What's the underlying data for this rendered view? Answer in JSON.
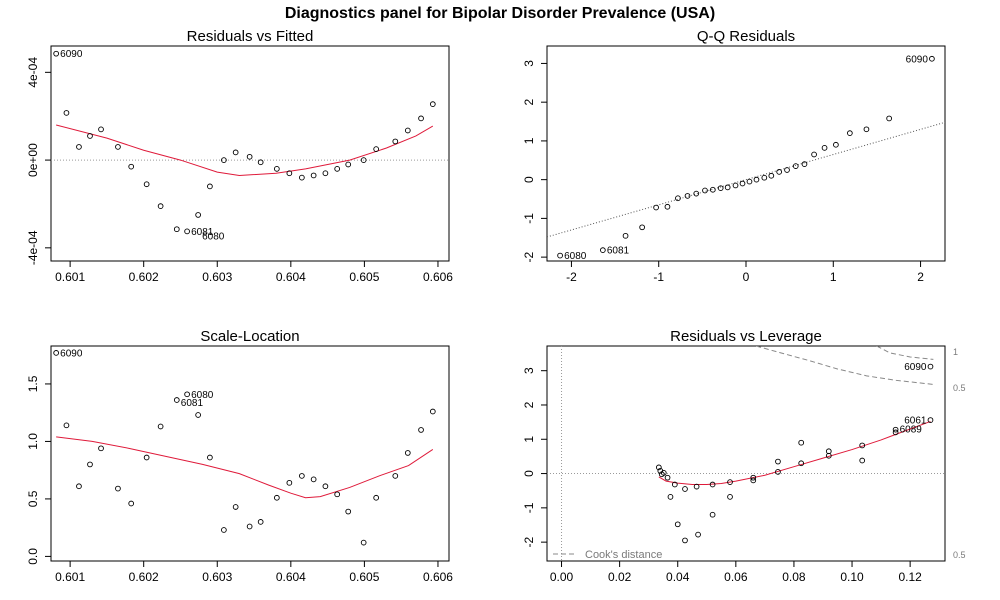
{
  "title": "Diagnostics panel for Bipolar Disorder Prevalence (USA)",
  "chart_data": [
    {
      "type": "scatter",
      "title": "Residuals vs Fitted",
      "xlabel": "",
      "ylabel": "",
      "xlim": [
        0.60074,
        0.60615
      ],
      "ylim": [
        -0.00046,
        0.00052
      ],
      "xticks": [
        0.601,
        0.602,
        0.603,
        0.604,
        0.605,
        0.606
      ],
      "xtick_labels": [
        "0.601",
        "0.602",
        "0.603",
        "0.604",
        "0.605",
        "0.606"
      ],
      "yticks": [
        -0.0004,
        0,
        0.0004
      ],
      "ytick_labels": [
        "-4e-04",
        "0e+00",
        "4e-04"
      ],
      "hline": 0,
      "points": [
        [
          0.60081,
          0.000485
        ],
        [
          0.60095,
          0.000215
        ],
        [
          0.60112,
          6e-05
        ],
        [
          0.60127,
          0.00011
        ],
        [
          0.60142,
          0.00014
        ],
        [
          0.60165,
          6e-05
        ],
        [
          0.60183,
          -3e-05
        ],
        [
          0.60204,
          -0.00011
        ],
        [
          0.60223,
          -0.00021
        ],
        [
          0.60245,
          -0.000315
        ],
        [
          0.60259,
          -0.000325
        ],
        [
          0.60274,
          -0.00025
        ],
        [
          0.6029,
          -0.00012
        ],
        [
          0.60309,
          0
        ],
        [
          0.60325,
          3.5e-05
        ],
        [
          0.60344,
          1.5e-05
        ],
        [
          0.60359,
          -1e-05
        ],
        [
          0.60381,
          -4e-05
        ],
        [
          0.60398,
          -6e-05
        ],
        [
          0.60415,
          -8e-05
        ],
        [
          0.60431,
          -7e-05
        ],
        [
          0.60447,
          -6e-05
        ],
        [
          0.60463,
          -4e-05
        ],
        [
          0.60478,
          -2e-05
        ],
        [
          0.60499,
          0
        ],
        [
          0.60516,
          5e-05
        ],
        [
          0.60542,
          8.5e-05
        ],
        [
          0.60559,
          0.000135
        ],
        [
          0.60577,
          0.00019
        ],
        [
          0.60593,
          0.000255
        ]
      ],
      "smooth": [
        [
          0.60081,
          0.00016
        ],
        [
          0.6015,
          0.0001
        ],
        [
          0.602,
          4.5e-05
        ],
        [
          0.6025,
          0
        ],
        [
          0.603,
          -5.5e-05
        ],
        [
          0.6033,
          -7e-05
        ],
        [
          0.6038,
          -6e-05
        ],
        [
          0.6042,
          -4e-05
        ],
        [
          0.6048,
          0
        ],
        [
          0.6053,
          5.5e-05
        ],
        [
          0.6057,
          0.00011
        ],
        [
          0.60593,
          0.000155
        ]
      ],
      "labels": [
        {
          "text": "6090",
          "x": 0.60081,
          "y": 0.000485
        },
        {
          "text": "6081",
          "x": 0.60259,
          "y": -0.000325
        },
        {
          "text": "6080",
          "x": 0.60274,
          "y": -0.000345
        }
      ]
    },
    {
      "type": "scatter",
      "title": "Q-Q Residuals",
      "xlabel": "",
      "ylabel": "",
      "xlim": [
        -2.28,
        2.28
      ],
      "ylim": [
        -2.1,
        3.45
      ],
      "xticks": [
        -2,
        -1,
        0,
        1,
        2
      ],
      "xtick_labels": [
        "-2",
        "-1",
        "0",
        "1",
        "2"
      ],
      "yticks": [
        -2,
        -1,
        0,
        1,
        2,
        3
      ],
      "ytick_labels": [
        "-2",
        "-1",
        "0",
        "1",
        "2",
        "3"
      ],
      "refline": [
        [
          -2.28,
          -1.48
        ],
        [
          2.28,
          1.48
        ]
      ],
      "points": [
        [
          -2.13,
          -1.96
        ],
        [
          -1.64,
          -1.82
        ],
        [
          -1.38,
          -1.45
        ],
        [
          -1.19,
          -1.23
        ],
        [
          -1.03,
          -0.72
        ],
        [
          -0.9,
          -0.7
        ],
        [
          -0.78,
          -0.48
        ],
        [
          -0.67,
          -0.42
        ],
        [
          -0.57,
          -0.36
        ],
        [
          -0.47,
          -0.28
        ],
        [
          -0.38,
          -0.26
        ],
        [
          -0.29,
          -0.22
        ],
        [
          -0.21,
          -0.2
        ],
        [
          -0.12,
          -0.15
        ],
        [
          -0.04,
          -0.1
        ],
        [
          0.04,
          -0.05
        ],
        [
          0.12,
          0
        ],
        [
          0.21,
          0.05
        ],
        [
          0.29,
          0.1
        ],
        [
          0.38,
          0.2
        ],
        [
          0.47,
          0.25
        ],
        [
          0.57,
          0.35
        ],
        [
          0.67,
          0.4
        ],
        [
          0.78,
          0.65
        ],
        [
          0.9,
          0.82
        ],
        [
          1.03,
          0.9
        ],
        [
          1.19,
          1.2
        ],
        [
          1.38,
          1.3
        ],
        [
          1.64,
          1.58
        ],
        [
          2.13,
          3.12
        ]
      ],
      "labels": [
        {
          "text": "6080",
          "x": -2.13,
          "y": -1.96
        },
        {
          "text": "6081",
          "x": -1.64,
          "y": -1.82
        },
        {
          "text": "6090",
          "x": 2.13,
          "y": 3.12
        }
      ]
    },
    {
      "type": "scatter",
      "title": "Scale-Location",
      "xlabel": "",
      "ylabel": "",
      "xlim": [
        0.60074,
        0.60615
      ],
      "ylim": [
        -0.04,
        1.83
      ],
      "xticks": [
        0.601,
        0.602,
        0.603,
        0.604,
        0.605,
        0.606
      ],
      "xtick_labels": [
        "0.601",
        "0.602",
        "0.603",
        "0.604",
        "0.605",
        "0.606"
      ],
      "yticks": [
        0,
        0.5,
        1,
        1.5
      ],
      "ytick_labels": [
        "0.0",
        "0.5",
        "1.0",
        "1.5"
      ],
      "points": [
        [
          0.60081,
          1.77
        ],
        [
          0.60095,
          1.14
        ],
        [
          0.60112,
          0.61
        ],
        [
          0.60127,
          0.8
        ],
        [
          0.60142,
          0.94
        ],
        [
          0.60165,
          0.59
        ],
        [
          0.60183,
          0.46
        ],
        [
          0.60204,
          0.86
        ],
        [
          0.60223,
          1.13
        ],
        [
          0.60245,
          1.36
        ],
        [
          0.60259,
          1.41
        ],
        [
          0.60274,
          1.23
        ],
        [
          0.6029,
          0.86
        ],
        [
          0.60309,
          0.23
        ],
        [
          0.60325,
          0.43
        ],
        [
          0.60344,
          0.26
        ],
        [
          0.60359,
          0.3
        ],
        [
          0.60381,
          0.51
        ],
        [
          0.60398,
          0.64
        ],
        [
          0.60415,
          0.7
        ],
        [
          0.60431,
          0.67
        ],
        [
          0.60447,
          0.61
        ],
        [
          0.60463,
          0.54
        ],
        [
          0.60478,
          0.39
        ],
        [
          0.60499,
          0.12
        ],
        [
          0.60516,
          0.51
        ],
        [
          0.60542,
          0.7
        ],
        [
          0.60559,
          0.9
        ],
        [
          0.60577,
          1.1
        ],
        [
          0.60593,
          1.26
        ]
      ],
      "smooth": [
        [
          0.60081,
          1.04
        ],
        [
          0.6013,
          1.0
        ],
        [
          0.6018,
          0.94
        ],
        [
          0.6023,
          0.87
        ],
        [
          0.6028,
          0.8
        ],
        [
          0.6033,
          0.72
        ],
        [
          0.6037,
          0.62
        ],
        [
          0.604,
          0.55
        ],
        [
          0.6042,
          0.51
        ],
        [
          0.6044,
          0.52
        ],
        [
          0.6048,
          0.6
        ],
        [
          0.6052,
          0.7
        ],
        [
          0.6056,
          0.79
        ],
        [
          0.60593,
          0.93
        ]
      ],
      "labels": [
        {
          "text": "6090",
          "x": 0.60081,
          "y": 1.77
        },
        {
          "text": "6080",
          "x": 0.60259,
          "y": 1.41
        },
        {
          "text": "6081",
          "x": 0.60245,
          "y": 1.34
        }
      ]
    },
    {
      "type": "scatter",
      "title": "Residuals vs Leverage",
      "xlabel": "",
      "ylabel": "",
      "xlim": [
        -0.005,
        0.132
      ],
      "ylim": [
        -2.55,
        3.72
      ],
      "xticks": [
        0,
        0.02,
        0.04,
        0.06,
        0.08,
        0.1,
        0.12
      ],
      "xtick_labels": [
        "0.00",
        "0.02",
        "0.04",
        "0.06",
        "0.08",
        "0.10",
        "0.12"
      ],
      "yticks": [
        -2,
        -1,
        0,
        1,
        2,
        3
      ],
      "ytick_labels": [
        "-2",
        "-1",
        "0",
        "1",
        "2",
        "3"
      ],
      "hline": 0,
      "vline": 0,
      "legend": {
        "text": "Cook's distance",
        "position": "bottom-left"
      },
      "cooks_labels": [
        {
          "text": "1",
          "y": 3.55
        },
        {
          "text": "0.5",
          "y": 2.5
        },
        {
          "text": "0.5",
          "y": -2.55
        }
      ],
      "cooks_contours": [
        [
          [
            0.1085,
            3.72
          ],
          [
            0.113,
            3.52
          ],
          [
            0.12,
            3.4
          ],
          [
            0.128,
            3.33
          ]
        ],
        [
          [
            0.067,
            3.72
          ],
          [
            0.075,
            3.53
          ],
          [
            0.085,
            3.3
          ],
          [
            0.095,
            3.05
          ],
          [
            0.105,
            2.85
          ],
          [
            0.115,
            2.72
          ],
          [
            0.128,
            2.6
          ]
        ]
      ],
      "points": [
        [
          0.0335,
          0.18
        ],
        [
          0.034,
          0.08
        ],
        [
          0.0345,
          -0.02
        ],
        [
          0.0352,
          0.02
        ],
        [
          0.0365,
          -0.12
        ],
        [
          0.0375,
          -0.68
        ],
        [
          0.039,
          -0.32
        ],
        [
          0.04,
          -1.48
        ],
        [
          0.0425,
          -0.45
        ],
        [
          0.0425,
          -1.95
        ],
        [
          0.0465,
          -0.38
        ],
        [
          0.047,
          -1.78
        ],
        [
          0.052,
          -1.2
        ],
        [
          0.052,
          -0.32
        ],
        [
          0.058,
          -0.25
        ],
        [
          0.058,
          -0.68
        ],
        [
          0.066,
          -0.12
        ],
        [
          0.066,
          -0.2
        ],
        [
          0.0745,
          0.05
        ],
        [
          0.0745,
          0.35
        ],
        [
          0.0825,
          0.3
        ],
        [
          0.0825,
          0.9
        ],
        [
          0.092,
          0.52
        ],
        [
          0.092,
          0.65
        ],
        [
          0.1035,
          0.38
        ],
        [
          0.1035,
          0.82
        ],
        [
          0.115,
          1.2
        ],
        [
          0.115,
          1.28
        ],
        [
          0.127,
          1.56
        ],
        [
          0.127,
          3.12
        ]
      ],
      "smooth": [
        [
          0.0335,
          -0.1
        ],
        [
          0.036,
          -0.22
        ],
        [
          0.04,
          -0.28
        ],
        [
          0.045,
          -0.32
        ],
        [
          0.05,
          -0.32
        ],
        [
          0.055,
          -0.29
        ],
        [
          0.06,
          -0.22
        ],
        [
          0.07,
          -0.05
        ],
        [
          0.08,
          0.2
        ],
        [
          0.09,
          0.45
        ],
        [
          0.1,
          0.7
        ],
        [
          0.11,
          0.98
        ],
        [
          0.12,
          1.3
        ],
        [
          0.127,
          1.52
        ]
      ],
      "labels": [
        {
          "text": "6090",
          "x": 0.127,
          "y": 3.12
        },
        {
          "text": "6089",
          "x": 0.115,
          "y": 1.3
        },
        {
          "text": "6061",
          "x": 0.127,
          "y": 1.56
        }
      ]
    }
  ]
}
